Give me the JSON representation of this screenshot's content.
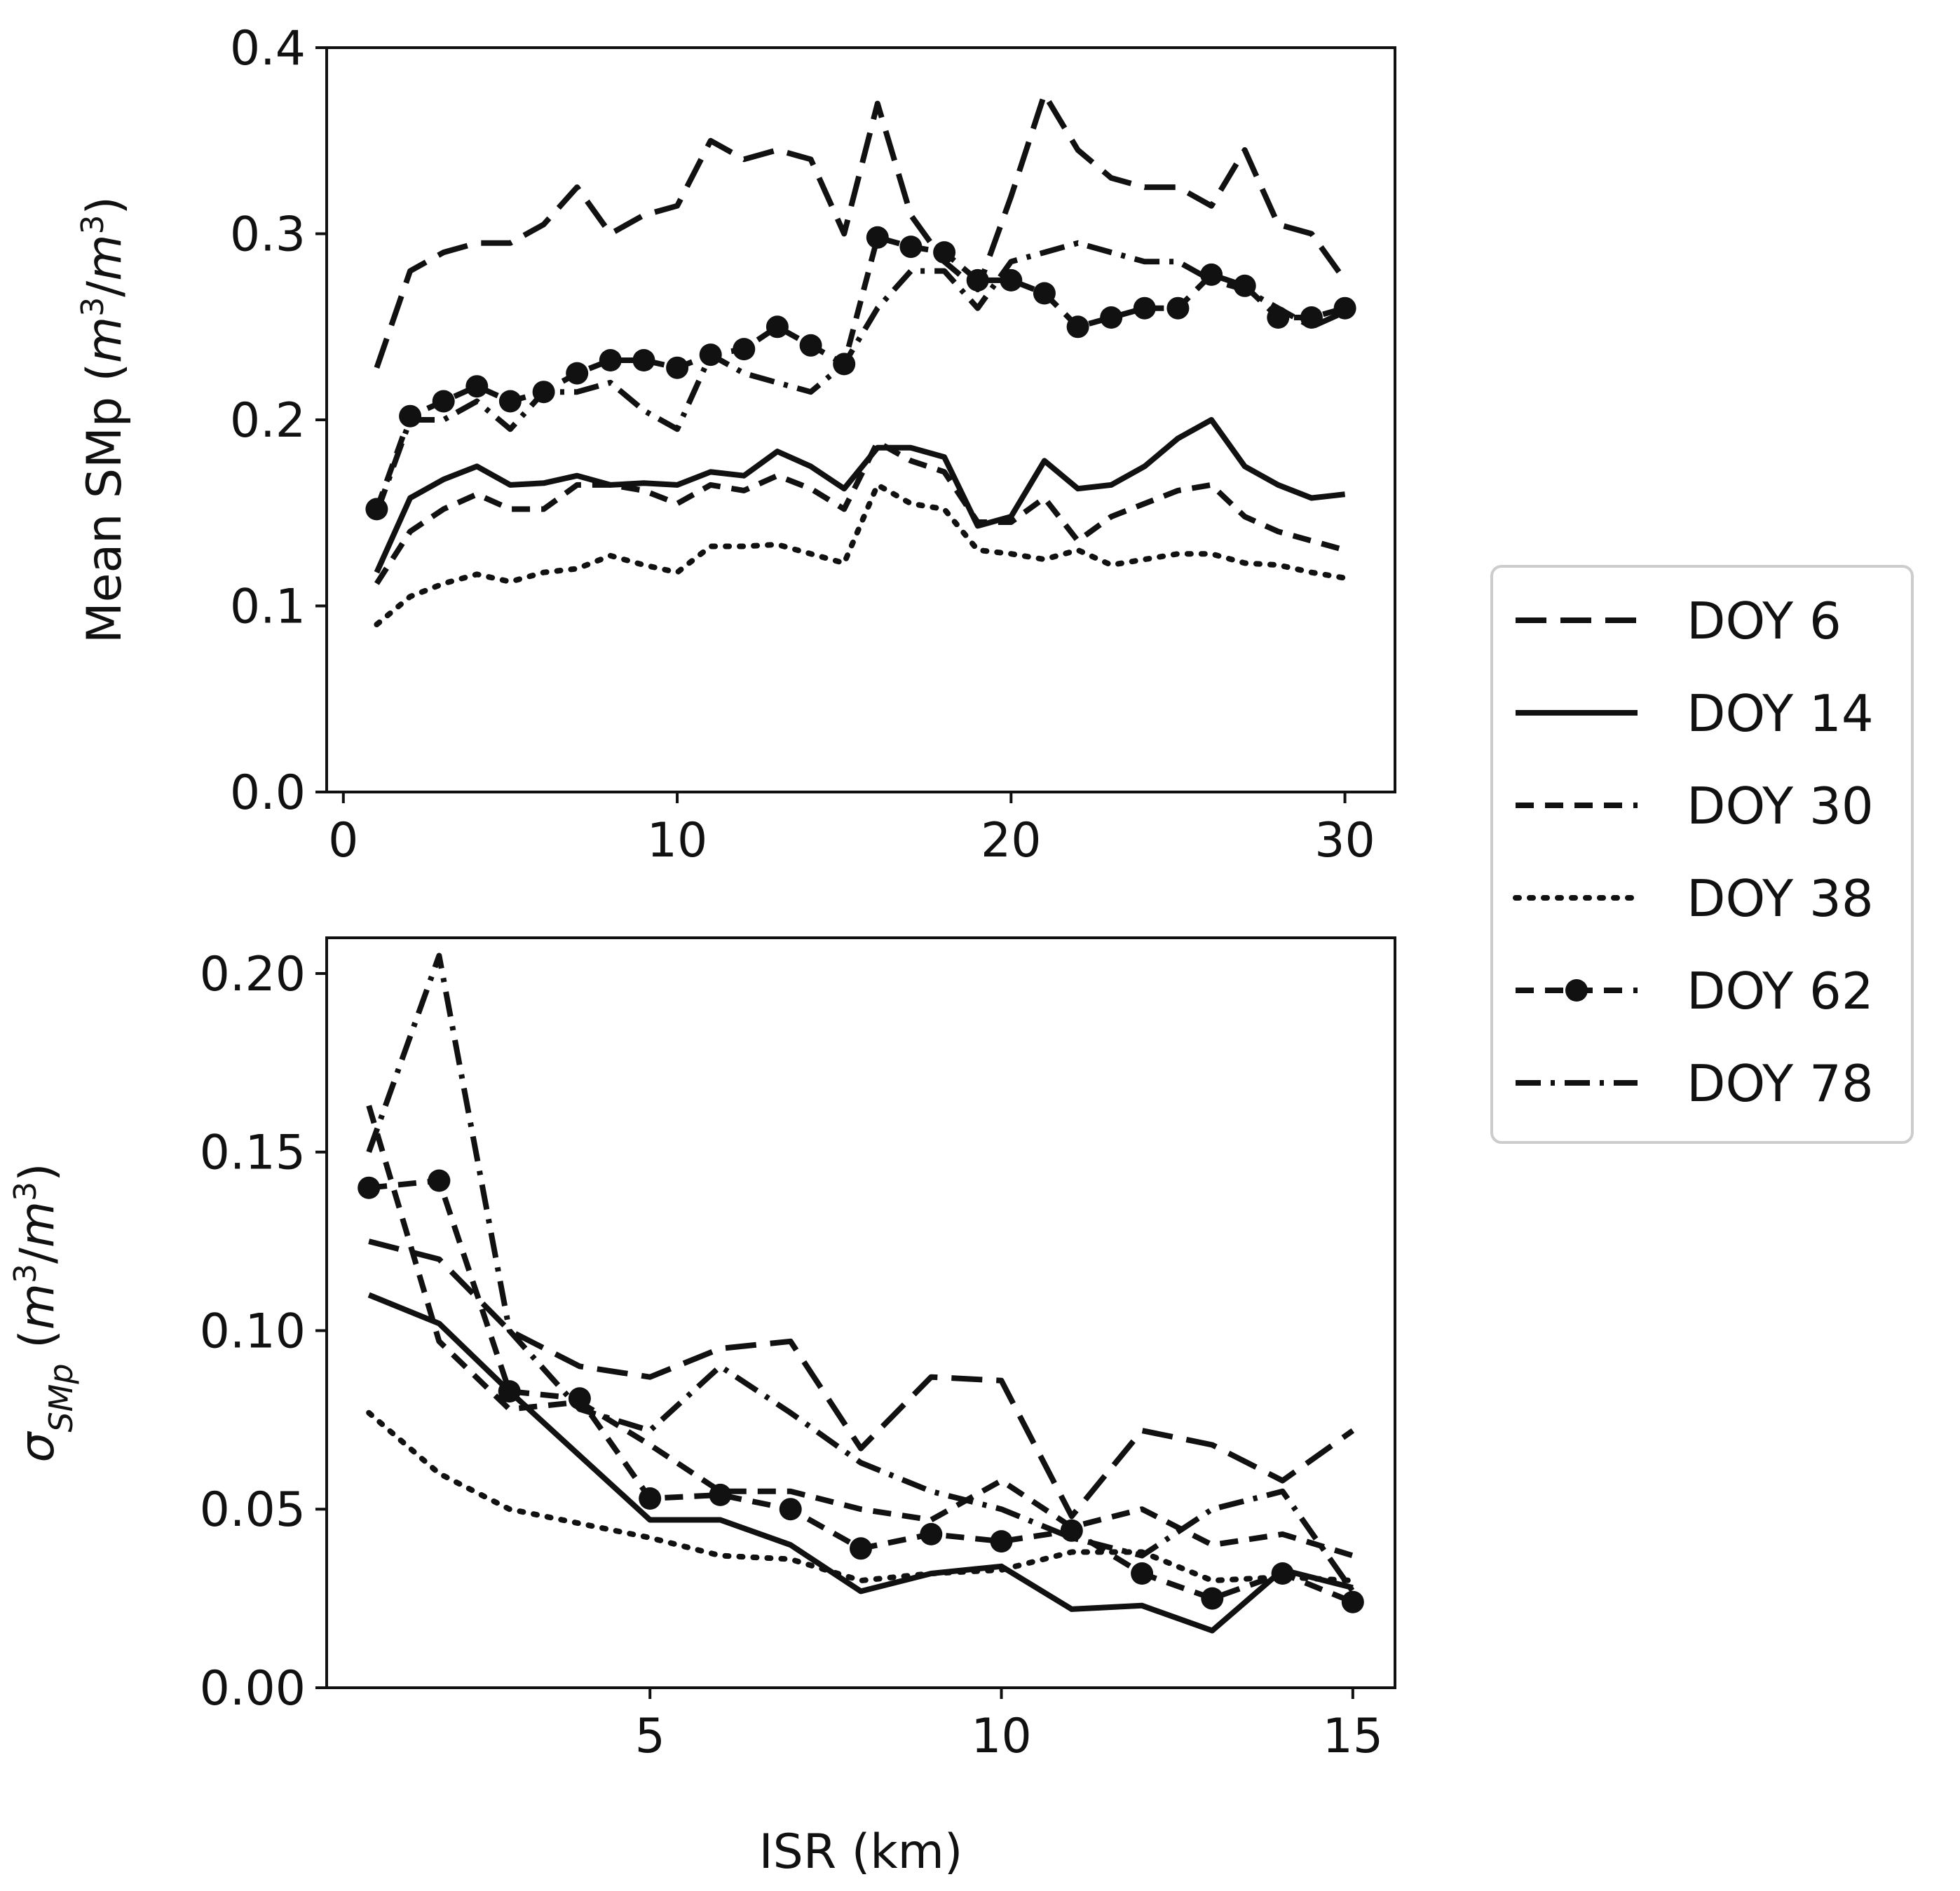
{
  "chart_data": [
    {
      "type": "line",
      "panel": "top",
      "ylabel": "Mean SMp (m3/m3)",
      "ylabel_parts": {
        "base": "Mean SMp (",
        "m1": "m",
        "s1": "3",
        "slash": "/",
        "m2": "m",
        "s2": "3",
        "close": ")"
      },
      "xlabel": "",
      "xlim": [
        -0.5,
        31.5
      ],
      "ylim": [
        0.0,
        0.4
      ],
      "xticks": [
        0,
        10,
        20,
        30
      ],
      "xtick_labels": [
        "0",
        "10",
        "20",
        "30"
      ],
      "yticks": [
        0.0,
        0.1,
        0.2,
        0.3,
        0.4
      ],
      "ytick_labels": [
        "0.0",
        "0.1",
        "0.2",
        "0.3",
        "0.4"
      ],
      "x": [
        1,
        2,
        3,
        4,
        5,
        6,
        7,
        8,
        9,
        10,
        11,
        12,
        13,
        14,
        15,
        16,
        17,
        18,
        19,
        20,
        21,
        22,
        23,
        24,
        25,
        26,
        27,
        28,
        29,
        30
      ],
      "series": [
        {
          "name": "DOY 6",
          "values": [
            0.228,
            0.28,
            0.29,
            0.295,
            0.295,
            0.305,
            0.325,
            0.3,
            0.31,
            0.315,
            0.35,
            0.34,
            0.345,
            0.34,
            0.3,
            0.37,
            0.31,
            0.285,
            0.27,
            0.32,
            0.375,
            0.345,
            0.33,
            0.325,
            0.325,
            0.315,
            0.345,
            0.305,
            0.3,
            0.275
          ]
        },
        {
          "name": "DOY 14",
          "values": [
            0.118,
            0.158,
            0.168,
            0.175,
            0.165,
            0.166,
            0.17,
            0.165,
            0.166,
            0.165,
            0.172,
            0.17,
            0.183,
            0.175,
            0.163,
            0.185,
            0.185,
            0.18,
            0.143,
            0.148,
            0.178,
            0.163,
            0.165,
            0.175,
            0.19,
            0.2,
            0.175,
            0.165,
            0.158,
            0.16
          ]
        },
        {
          "name": "DOY 30",
          "values": [
            0.112,
            0.14,
            0.152,
            0.16,
            0.152,
            0.152,
            0.165,
            0.165,
            0.162,
            0.155,
            0.165,
            0.162,
            0.17,
            0.163,
            0.152,
            0.188,
            0.178,
            0.172,
            0.145,
            0.145,
            0.158,
            0.135,
            0.148,
            0.155,
            0.162,
            0.165,
            0.148,
            0.14,
            0.135,
            0.13
          ]
        },
        {
          "name": "DOY 38",
          "values": [
            0.09,
            0.105,
            0.112,
            0.117,
            0.113,
            0.118,
            0.12,
            0.127,
            0.122,
            0.118,
            0.132,
            0.132,
            0.133,
            0.128,
            0.123,
            0.165,
            0.155,
            0.152,
            0.13,
            0.128,
            0.125,
            0.13,
            0.122,
            0.125,
            0.128,
            0.128,
            0.123,
            0.122,
            0.118,
            0.115
          ]
        },
        {
          "name": "DOY 62",
          "values": [
            0.152,
            0.202,
            0.21,
            0.218,
            0.21,
            0.215,
            0.225,
            0.232,
            0.232,
            0.228,
            0.235,
            0.238,
            0.25,
            0.24,
            0.23,
            0.298,
            0.293,
            0.29,
            0.275,
            0.275,
            0.268,
            0.25,
            0.255,
            0.26,
            0.26,
            0.278,
            0.272,
            0.255,
            0.255,
            0.26
          ]
        },
        {
          "name": "DOY 78",
          "values": [
            0.15,
            0.2,
            0.2,
            0.21,
            0.195,
            0.215,
            0.215,
            0.22,
            0.205,
            0.195,
            0.235,
            0.225,
            0.22,
            0.215,
            0.23,
            0.26,
            0.28,
            0.28,
            0.26,
            0.285,
            0.29,
            0.295,
            0.29,
            0.285,
            0.285,
            0.275,
            0.27,
            0.26,
            0.25,
            0.258
          ]
        }
      ]
    },
    {
      "type": "line",
      "panel": "bottom",
      "ylabel": "σSMp (m3/m3)",
      "ylabel_parts": {
        "sigma": "σ",
        "sub": "SMp",
        "open": " (",
        "m1": "m",
        "s1": "3",
        "slash": "/",
        "m2": "m",
        "s2": "3",
        "close": ")"
      },
      "xlabel": "ISR (km)",
      "xlim": [
        0.4,
        15.6
      ],
      "ylim": [
        0.0,
        0.21
      ],
      "xticks": [
        5,
        10,
        15
      ],
      "xtick_labels": [
        "5",
        "10",
        "15"
      ],
      "yticks": [
        0.0,
        0.05,
        0.1,
        0.15,
        0.2
      ],
      "ytick_labels": [
        "0.00",
        "0.05",
        "0.10",
        "0.15",
        "0.20"
      ],
      "x": [
        1,
        2,
        3,
        4,
        5,
        6,
        7,
        8,
        9,
        10,
        11,
        12,
        13,
        14,
        15
      ],
      "series": [
        {
          "name": "DOY 6",
          "values": [
            0.125,
            0.12,
            0.1,
            0.09,
            0.087,
            0.095,
            0.097,
            0.067,
            0.087,
            0.086,
            0.048,
            0.072,
            0.068,
            0.058,
            0.072
          ]
        },
        {
          "name": "DOY 14",
          "values": [
            0.11,
            0.102,
            0.083,
            0.065,
            0.047,
            0.047,
            0.04,
            0.027,
            0.032,
            0.034,
            0.022,
            0.023,
            0.016,
            0.033,
            0.028
          ]
        },
        {
          "name": "DOY 30",
          "values": [
            0.163,
            0.097,
            0.078,
            0.08,
            0.068,
            0.055,
            0.055,
            0.05,
            0.047,
            0.058,
            0.045,
            0.05,
            0.04,
            0.043,
            0.037
          ]
        },
        {
          "name": "DOY 38",
          "values": [
            0.077,
            0.06,
            0.05,
            0.046,
            0.042,
            0.037,
            0.036,
            0.03,
            0.032,
            0.033,
            0.038,
            0.038,
            0.03,
            0.031,
            0.03
          ]
        },
        {
          "name": "DOY 62",
          "values": [
            0.14,
            0.142,
            0.083,
            0.081,
            0.053,
            0.054,
            0.05,
            0.039,
            0.043,
            0.041,
            0.044,
            0.032,
            0.025,
            0.032,
            0.024
          ]
        },
        {
          "name": "DOY 78",
          "values": [
            0.15,
            0.205,
            0.1,
            0.078,
            0.072,
            0.09,
            0.077,
            0.063,
            0.055,
            0.05,
            0.042,
            0.037,
            0.05,
            0.055,
            0.027
          ]
        }
      ]
    }
  ],
  "legend": {
    "placement": "right",
    "entries": [
      "DOY 6",
      "DOY 14",
      "DOY 30",
      "DOY 38",
      "DOY 62",
      "DOY 78"
    ]
  }
}
